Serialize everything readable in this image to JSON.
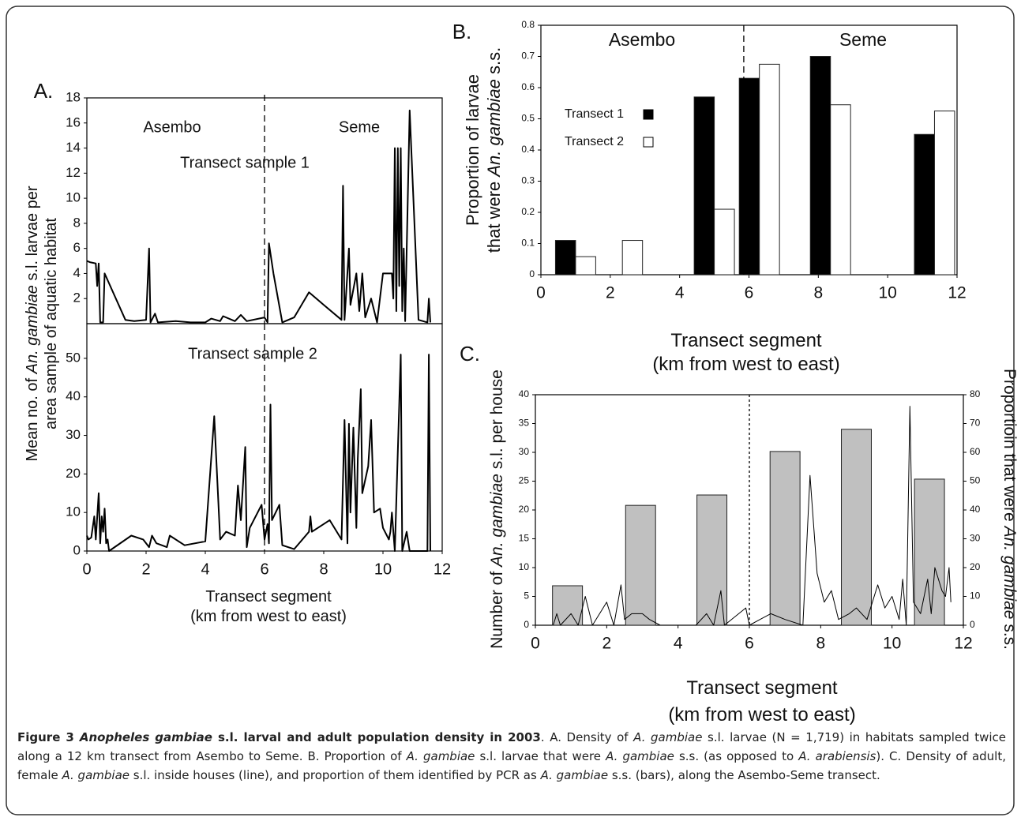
{
  "chart_data": [
    {
      "type": "line",
      "panel": "A.",
      "ylabel": [
        [
          "Mean no. of ",
          "An. gambiae",
          " s.l. larvae per"
        ],
        [
          "area sample of aquatic habitat"
        ]
      ],
      "annotations": [
        "Asembo",
        "Seme",
        "Transect sample 1"
      ],
      "boundary": 6,
      "xlim": [
        0,
        12
      ],
      "ylim": [
        0,
        18
      ],
      "yticks": [
        2,
        4,
        6,
        8,
        10,
        12,
        14,
        16,
        18
      ],
      "x": [
        0,
        0.1,
        0.3,
        0.35,
        0.4,
        0.45,
        0.55,
        0.6,
        1.3,
        1.6,
        2.0,
        2.1,
        2.15,
        2.3,
        2.4,
        3.0,
        3.5,
        4.0,
        4.2,
        4.5,
        4.6,
        5.0,
        5.2,
        5.4,
        6.0,
        6.1,
        6.15,
        6.3,
        6.6,
        7.0,
        7.5,
        8.0,
        8.6,
        8.65,
        8.7,
        8.85,
        8.9,
        9.1,
        9.2,
        9.3,
        9.4,
        9.6,
        9.8,
        10.0,
        10.3,
        10.35,
        10.4,
        10.45,
        10.5,
        10.55,
        10.6,
        10.65,
        10.7,
        10.75,
        10.9,
        11.2,
        11.5,
        11.55,
        11.6
      ],
      "series": [
        {
          "color": "#000000",
          "values": [
            5,
            4.9,
            4.8,
            3,
            4.8,
            0.1,
            0.1,
            4,
            0.3,
            0.2,
            0.3,
            6,
            0.1,
            0.8,
            0.1,
            0.2,
            0.1,
            0.1,
            0.4,
            0.2,
            0.6,
            0.2,
            0.7,
            0.2,
            0.5,
            0.1,
            6.4,
            4,
            0.1,
            0.5,
            2.5,
            1.5,
            0.3,
            11,
            0.3,
            6,
            1.5,
            4,
            1,
            4,
            0.5,
            2,
            0.1,
            4,
            4,
            2,
            14,
            1,
            14,
            3,
            14,
            1,
            6,
            0.2,
            17,
            0.3,
            0.1,
            2,
            0.1
          ]
        }
      ]
    },
    {
      "type": "line",
      "annotations": [
        "Transect sample 2"
      ],
      "boundary": 6,
      "xlabel": [
        [
          "Transect segment"
        ],
        [
          "(km from west to east)"
        ]
      ],
      "xlim": [
        0,
        12
      ],
      "ylim": [
        0,
        59
      ],
      "xticks": [
        0,
        2,
        4,
        6,
        8,
        10,
        12
      ],
      "yticks": [
        0,
        10,
        20,
        30,
        40,
        50
      ],
      "x": [
        0,
        0.05,
        0.15,
        0.25,
        0.3,
        0.4,
        0.45,
        0.5,
        0.55,
        0.6,
        0.65,
        0.7,
        0.75,
        1.5,
        1.9,
        2.1,
        2.2,
        2.35,
        2.7,
        2.8,
        3.3,
        4.0,
        4.3,
        4.5,
        4.7,
        5.0,
        5.1,
        5.2,
        5.35,
        5.4,
        5.5,
        5.9,
        6.0,
        6.1,
        6.15,
        6.2,
        6.25,
        6.5,
        6.6,
        7.0,
        7.5,
        7.55,
        7.6,
        8.2,
        8.6,
        8.7,
        8.8,
        8.85,
        8.9,
        9.0,
        9.1,
        9.15,
        9.25,
        9.3,
        9.5,
        9.6,
        9.7,
        9.9,
        10.0,
        10.2,
        10.25,
        10.3,
        10.4,
        10.6,
        10.65,
        10.8,
        10.9,
        11.5,
        11.55,
        11.6
      ],
      "series": [
        {
          "color": "#000000",
          "values": [
            4,
            3,
            3.5,
            9,
            3,
            15,
            2,
            9,
            5,
            11,
            2,
            3,
            0,
            4,
            3,
            1,
            4,
            2,
            1,
            4,
            1.5,
            2.5,
            35,
            3,
            5,
            4,
            17,
            8,
            27,
            1,
            6,
            12,
            3,
            7,
            2,
            38,
            8,
            12,
            1.5,
            0.5,
            5,
            9,
            5,
            8,
            3,
            34,
            2,
            33,
            10,
            32,
            6,
            24,
            42,
            15,
            22,
            34,
            10,
            11,
            6,
            3,
            5,
            10,
            0,
            51,
            0,
            5,
            0,
            0,
            51,
            0
          ]
        }
      ]
    },
    {
      "type": "bar",
      "panel": "B.",
      "ylabel": [
        [
          "Proportion of larvae"
        ],
        [
          "that were ",
          "An. gambiae",
          " s.s."
        ]
      ],
      "xlabel": [
        [
          "Transect segment"
        ],
        [
          "(km from west to east)"
        ]
      ],
      "annotations": [
        "Asembo",
        "Seme"
      ],
      "boundary": 5.85,
      "legend": "left",
      "xlim": [
        0,
        12
      ],
      "ylim": [
        0,
        0.8
      ],
      "xticks": [
        0,
        2,
        4,
        6,
        8,
        10,
        12
      ],
      "yticks": [
        0,
        0.1,
        0.2,
        0.3,
        0.4,
        0.5,
        0.6,
        0.7,
        0.8
      ],
      "x": [
        1.0,
        2.35,
        5.0,
        6.3,
        8.35,
        11.35
      ],
      "series": [
        {
          "name": "Transect 1",
          "color": "#000000",
          "values": [
            0.11,
            0,
            0.57,
            0.63,
            0.7,
            0.45
          ]
        },
        {
          "name": "Transect 2",
          "color": "#ffffff",
          "values": [
            0.058,
            0.11,
            0.21,
            0.675,
            0.545,
            0.525
          ]
        }
      ]
    },
    {
      "type": "combo",
      "panel": "C.",
      "ylabel": [
        [
          "Number of ",
          "An. gambiae",
          " s.l. per house"
        ]
      ],
      "y2label": [
        [
          "Proportioin that were ",
          "An. gambiae",
          " s.s."
        ]
      ],
      "xlabel": [
        [
          "Transect segment"
        ],
        [
          "(km from west to east)"
        ]
      ],
      "boundary": 6,
      "xlim": [
        0,
        12
      ],
      "ylim": [
        0,
        40
      ],
      "y2lim": [
        0,
        80
      ],
      "xticks": [
        0,
        2,
        4,
        6,
        8,
        10,
        12
      ],
      "yticks": [
        0,
        5,
        10,
        15,
        20,
        25,
        30,
        35,
        40
      ],
      "y2ticks": [
        0,
        10,
        20,
        30,
        40,
        50,
        60,
        70,
        80
      ],
      "series": [
        {
          "type": "bar",
          "axis": "y2",
          "color": "#c0c0c0",
          "x": [
            0.9,
            2.95,
            4.95,
            7,
            9,
            11.05
          ],
          "values": [
            13.7,
            41.6,
            45.2,
            60.3,
            68,
            50.7
          ]
        },
        {
          "type": "line",
          "color": "#000000",
          "x": [
            0.5,
            0.6,
            0.7,
            1.0,
            1.2,
            1.4,
            1.6,
            2,
            2.2,
            2.4,
            2.5,
            2.7,
            3.0,
            3.2,
            3.5,
            4,
            4.5,
            4.8,
            5.0,
            5.2,
            5.3,
            5.9,
            6.0,
            6.3,
            6.6,
            7.0,
            7.5,
            7.7,
            7.9,
            8.1,
            8.3,
            8.5,
            8.8,
            9.0,
            9.3,
            9.6,
            9.8,
            10.0,
            10.2,
            10.3,
            10.4,
            10.5,
            10.6,
            10.8,
            11.0,
            11.1,
            11.2,
            11.4,
            11.5,
            11.6,
            11.65
          ],
          "values": [
            0,
            2,
            0,
            2,
            0,
            5,
            0,
            4,
            0,
            7,
            1,
            2,
            2,
            1,
            0,
            0,
            0,
            2,
            0,
            6,
            0,
            3,
            0,
            1,
            2,
            1,
            0,
            26,
            9,
            4,
            6,
            1,
            2,
            3,
            1,
            7,
            3,
            5,
            1,
            8,
            0,
            38,
            4,
            2,
            8,
            2,
            10,
            6,
            5,
            10,
            4
          ]
        }
      ]
    }
  ],
  "caption": [
    "Figure 3 ",
    "Anopheles gambiae",
    " s.l. larval and adult population density in 2003",
    ". A. Density of ",
    "A. gambiae",
    " s.l. larvae (N = 1,719) in habitats sampled twice along a 12 km transect from Asembo to Seme. B. Proportion of ",
    "A. gambiae",
    " s.l. larvae that were ",
    "A. gambiae",
    " s.s. (as opposed to ",
    "A. arabiensis",
    "). C. Density of adult, female ",
    "A. gambiae",
    " s.l. inside houses (line), and proportion of them identified by PCR as ",
    "A. gambiae",
    " s.s. (bars), along the Asembo-Seme transect."
  ]
}
